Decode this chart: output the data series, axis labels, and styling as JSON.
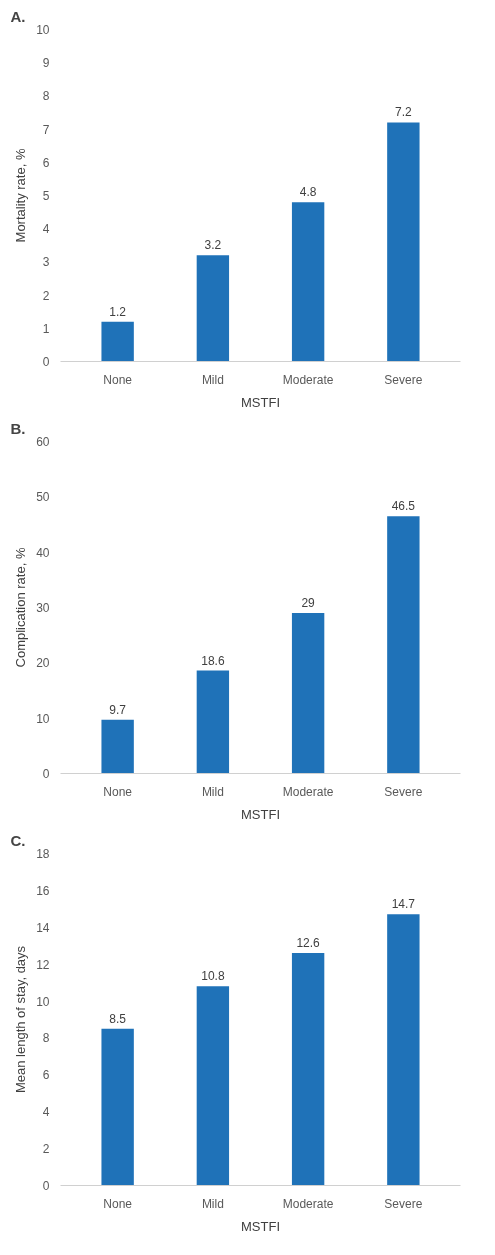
{
  "chart_data": [
    {
      "type": "bar",
      "title": "A.",
      "xlabel": "MSTFI",
      "ylabel": "Mortality rate, %",
      "categories": [
        "None",
        "Mild",
        "Moderate",
        "Severe"
      ],
      "values": [
        1.2,
        3.2,
        4.8,
        7.2
      ],
      "color": "#1f72b8",
      "ylim": [
        0,
        10
      ],
      "yticks": [
        0,
        1,
        2,
        3,
        4,
        5,
        6,
        7,
        8,
        9,
        10
      ],
      "data_labels": true
    },
    {
      "type": "bar",
      "title": "B.",
      "xlabel": "MSTFI",
      "ylabel": "Complication rate, %",
      "categories": [
        "None",
        "Mild",
        "Moderate",
        "Severe"
      ],
      "values": [
        9.7,
        18.6,
        29,
        46.5
      ],
      "color": "#1f72b8",
      "ylim": [
        0,
        60
      ],
      "yticks": [
        0,
        10,
        20,
        30,
        40,
        50,
        60
      ],
      "data_labels": true
    },
    {
      "type": "bar",
      "title": "C.",
      "xlabel": "MSTFI",
      "ylabel": "Mean length of stay, days",
      "categories": [
        "None",
        "Mild",
        "Moderate",
        "Severe"
      ],
      "values": [
        8.5,
        10.8,
        12.6,
        14.7
      ],
      "color": "#1f72b8",
      "ylim": [
        0,
        18
      ],
      "yticks": [
        0,
        2,
        4,
        6,
        8,
        10,
        12,
        14,
        16,
        18
      ],
      "data_labels": true
    }
  ]
}
